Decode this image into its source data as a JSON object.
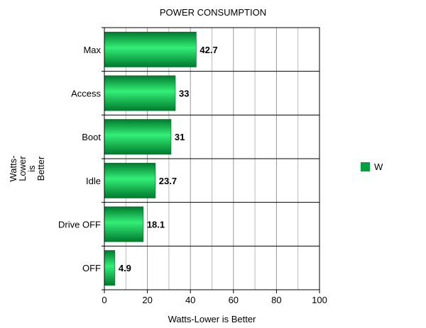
{
  "chart_data": {
    "type": "bar",
    "orientation": "horizontal",
    "title": "POWER CONSUMPTION",
    "xlabel": "Watts-Lower is Better",
    "ylabel_lines": [
      "Watts-",
      "Lower",
      "is",
      "Better"
    ],
    "categories": [
      "Max",
      "Access",
      "Boot",
      "Idle",
      "Drive OFF",
      "OFF"
    ],
    "series": [
      {
        "name": "W",
        "values": [
          42.7,
          33,
          31,
          23.7,
          18.1,
          4.9
        ]
      }
    ],
    "value_labels": [
      "42.7",
      "33",
      "31",
      "23.7",
      "18.1",
      "4.9"
    ],
    "xlim": [
      0,
      100
    ],
    "xticks": [
      0,
      20,
      40,
      60,
      80,
      100
    ],
    "grid": true,
    "legend_position": "right",
    "colors": {
      "bar": "#00a040",
      "bar_light": "#33ee77",
      "bar_dark": "#007a2e",
      "grid": "#bbbbbb",
      "frame": "#000000"
    }
  }
}
